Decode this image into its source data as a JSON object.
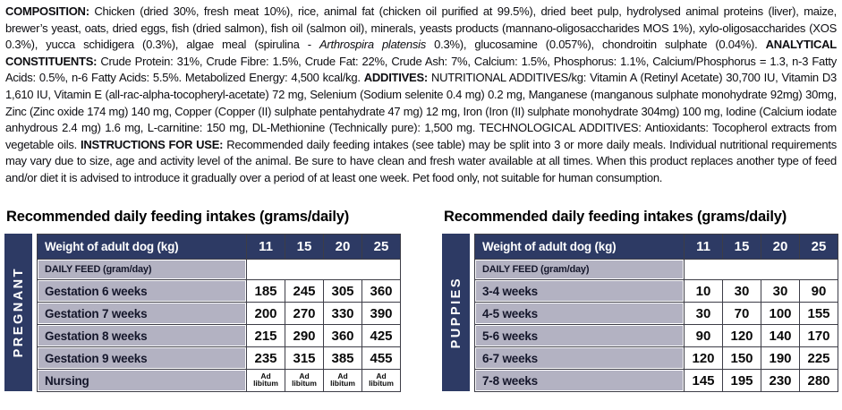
{
  "colors": {
    "table_header_navy": "#2d3a64",
    "row_label_gray": "#b3b2c2",
    "table_border": "#3d3d47",
    "text": "#0d0d11"
  },
  "paragraph": {
    "segments": [
      {
        "style": "bold",
        "text": "COMPOSITION: "
      },
      {
        "style": "normal",
        "text": "Chicken (dried 30%, fresh meat 10%), rice, animal fat (chicken oil purified at 99.5%), dried beet pulp, hydrolysed animal proteins (liver), maize, brewer’s yeast, oats, dried eggs, fish (dried salmon), fish oil (salmon oil), minerals, yeasts products (mannano-oligosaccharides MOS 1%), xylo-oligosaccharides (XOS 0.3%), yucca schidigera (0.3%), algae meal (spirulina - "
      },
      {
        "style": "italic",
        "text": "Arthrospira platensis"
      },
      {
        "style": "normal",
        "text": " 0.3%), glucosamine (0.057%), chondroitin sulphate (0.04%). "
      },
      {
        "style": "bold",
        "text": "ANALYTICAL CONSTITUENTS: "
      },
      {
        "style": "normal",
        "text": "Crude Protein: 31%, Crude Fibre: 1.5%, Crude Fat: 22%, Crude Ash: 7%, Calcium: 1.5%, Phosphorus: 1.1%, Calcium/Phosphorus = 1.3, n-3 Fatty Acids: 0.5%, n-6 Fatty Acids: 5.5%. Metabolized Energy: 4,500 kcal/kg. "
      },
      {
        "style": "bold",
        "text": "ADDITIVES: "
      },
      {
        "style": "normal",
        "text": "NUTRITIONAL ADDITIVES/kg: Vitamin A (Retinyl Acetate) 30,700 IU, Vitamin D3 1,610 IU, Vitamin E (all-rac-alpha-tocopheryl-acetate) 72 mg, Selenium (Sodium selenite 0.4 mg) 0.2 mg, Manganese (manganous sulphate monohydrate 92mg) 30mg, Zinc (Zinc oxide 174 mg) 140 mg, Copper (Copper (II) sulphate pentahydrate 47 mg) 12 mg, Iron (Iron (II) sulphate monohydrate 304mg) 100 mg, Iodine (Calcium iodate anhydrous 2.4 mg) 1.6 mg, L-carnitine: 150 mg, DL-Methionine (Technically pure): 1,500 mg. TECHNOLOGICAL ADDITIVES: Antioxidants: Tocopherol extracts from vegetable oils. "
      },
      {
        "style": "bold",
        "text": "INSTRUCTIONS FOR USE: "
      },
      {
        "style": "normal",
        "text": "Recommended daily feeding intakes (see table) may be split into 3 or more daily meals. Individual nutritional requirements may vary due to size, age and activity level of the animal. Be sure to have clean and fresh water available at all times. When this product replaces another type of feed and/or diet it is advised to introduce it gradually over a period of at least one week. Pet food only, not suitable for human consumption."
      }
    ]
  },
  "tables": [
    {
      "title": "Recommended daily feeding intakes (grams/daily)",
      "side_label": "PREGNANT",
      "header": [
        "Weight of adult dog (kg)",
        "11",
        "15",
        "20",
        "25"
      ],
      "subheader": "DAILY FEED (gram/day)",
      "rows": [
        {
          "label": "Gestation 6 weeks",
          "values": [
            "185",
            "245",
            "305",
            "360"
          ]
        },
        {
          "label": "Gestation 7 weeks",
          "values": [
            "200",
            "270",
            "330",
            "390"
          ]
        },
        {
          "label": "Gestation 8 weeks",
          "values": [
            "215",
            "290",
            "360",
            "425"
          ]
        },
        {
          "label": "Gestation 9 weeks",
          "values": [
            "235",
            "315",
            "385",
            "455"
          ]
        },
        {
          "label": "Nursing",
          "ad_libitum": true,
          "values": [
            "Ad libitum",
            "Ad libitum",
            "Ad libitum",
            "Ad libitum"
          ]
        }
      ]
    },
    {
      "title": "Recommended daily feeding intakes (grams/daily)",
      "side_label": "PUPPIES",
      "header": [
        "Weight of adult dog (kg)",
        "11",
        "15",
        "20",
        "25"
      ],
      "subheader": "DAILY FEED (gram/day)",
      "rows": [
        {
          "label": "3-4 weeks",
          "values": [
            "10",
            "30",
            "30",
            "90"
          ]
        },
        {
          "label": "4-5 weeks",
          "values": [
            "30",
            "70",
            "100",
            "155"
          ]
        },
        {
          "label": "5-6 weeks",
          "values": [
            "90",
            "120",
            "140",
            "170"
          ]
        },
        {
          "label": "6-7 weeks",
          "values": [
            "120",
            "150",
            "190",
            "225"
          ]
        },
        {
          "label": "7-8 weeks",
          "values": [
            "145",
            "195",
            "230",
            "280"
          ]
        }
      ]
    }
  ]
}
